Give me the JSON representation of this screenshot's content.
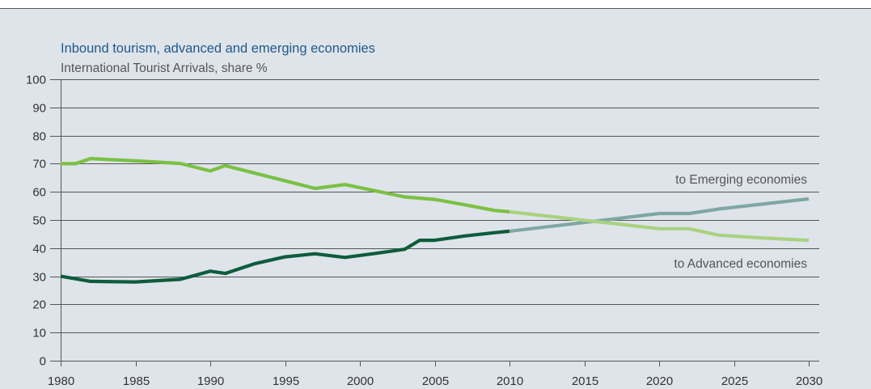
{
  "colors": {
    "background": "#dee4ea",
    "top_strip": "#ffffff",
    "rule": "#555555"
  },
  "chart_data": {
    "type": "line",
    "title": "Inbound tourism, advanced and emerging economies",
    "subtitle": "International Tourist Arrivals, share %",
    "xlim": [
      1980,
      2030
    ],
    "ylim": [
      0,
      100
    ],
    "x_ticks": [
      1980,
      1985,
      1990,
      1995,
      2000,
      2005,
      2010,
      2015,
      2020,
      2025,
      2030
    ],
    "y_ticks": [
      0,
      10,
      20,
      30,
      40,
      50,
      60,
      70,
      80,
      90,
      100
    ],
    "grid": "horizontal",
    "legend": "inline labels at right",
    "series": [
      {
        "name": "to Emerging economies",
        "segments": [
          {
            "color": "#0e5c3b",
            "x": [
              1980,
              1982,
              1985,
              1988,
              1990,
              1991,
              1993,
              1995,
              1997,
              1999,
              2001,
              2003,
              2004,
              2005,
              2007,
              2009,
              2010
            ],
            "y": [
              30.0,
              28.2,
              28.0,
              28.9,
              31.8,
              31.0,
              34.5,
              36.9,
              38.0,
              36.7,
              38.1,
              39.6,
              42.8,
              42.8,
              44.3,
              45.5,
              46.0
            ]
          },
          {
            "color": "#7fa7a3",
            "x": [
              2010,
              2015,
              2020,
              2022,
              2024,
              2030
            ],
            "y": [
              46.0,
              49.1,
              52.3,
              52.3,
              53.9,
              57.5
            ]
          }
        ]
      },
      {
        "name": "to Advanced economies",
        "segments": [
          {
            "color": "#7bc043",
            "x": [
              1980,
              1981,
              1982,
              1985,
              1988,
              1990,
              1991,
              1997,
              1999,
              2003,
              2005,
              2007,
              2009,
              2010
            ],
            "y": [
              70.0,
              70.0,
              71.8,
              71.0,
              70.1,
              67.4,
              69.3,
              61.2,
              62.6,
              58.2,
              57.3,
              55.4,
              53.4,
              52.9
            ]
          },
          {
            "color": "#a9d27f",
            "x": [
              2010,
              2015,
              2020,
              2022,
              2024,
              2027,
              2030
            ],
            "y": [
              52.9,
              49.9,
              46.9,
              46.9,
              44.6,
              43.6,
              42.8
            ]
          }
        ]
      }
    ]
  }
}
